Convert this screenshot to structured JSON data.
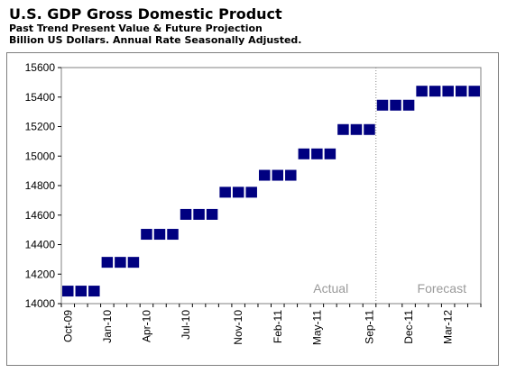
{
  "header": {
    "title": "U.S. GDP Gross Domestic Product",
    "subtitle1": "Past Trend Present Value & Future Projection",
    "subtitle2": "Billion US Dollars. Annual Rate Seasonally Adjusted."
  },
  "chart_data": {
    "type": "scatter",
    "title": "U.S. GDP Gross Domestic Product",
    "xlabel": "",
    "ylabel": "",
    "ylim": [
      14000,
      15600
    ],
    "yticks": [
      14000,
      14200,
      14400,
      14600,
      14800,
      15000,
      15200,
      15400,
      15600
    ],
    "xticks": [
      "Oct-09",
      "Jan-10",
      "Apr-10",
      "Jul-10",
      "Nov-10",
      "Feb-11",
      "May-11",
      "Sep-11",
      "Dec-11",
      "Mar-12"
    ],
    "grid": false,
    "marker_color": "#000080",
    "months": [
      "Oct-09",
      "Nov-09",
      "Dec-09",
      "Jan-10",
      "Feb-10",
      "Mar-10",
      "Apr-10",
      "May-10",
      "Jun-10",
      "Jul-10",
      "Aug-10",
      "Sep-10",
      "Oct-10",
      "Nov-10",
      "Dec-10",
      "Jan-11",
      "Feb-11",
      "Mar-11",
      "Apr-11",
      "May-11",
      "Jun-11",
      "Jul-11",
      "Aug-11",
      "Sep-11",
      "Oct-11",
      "Nov-11",
      "Dec-11",
      "Jan-12",
      "Feb-12",
      "Mar-12",
      "Apr-12",
      "May-12"
    ],
    "values": [
      14085,
      14085,
      14085,
      14280,
      14280,
      14280,
      14470,
      14470,
      14470,
      14605,
      14605,
      14605,
      14755,
      14755,
      14755,
      14870,
      14870,
      14870,
      15015,
      15015,
      15015,
      15180,
      15180,
      15180,
      15345,
      15345,
      15345,
      15440,
      15440,
      15440,
      15440,
      15440
    ],
    "divider_after": "Sep-11",
    "regions": [
      {
        "label": "Actual"
      },
      {
        "label": "Forecast"
      }
    ]
  }
}
